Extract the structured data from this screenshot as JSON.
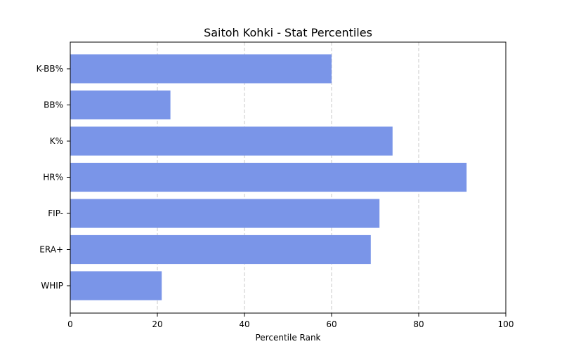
{
  "chart_data": {
    "type": "bar",
    "orientation": "horizontal",
    "title": "Saitoh Kohki - Stat Percentiles",
    "xlabel": "Percentile Rank",
    "ylabel": "",
    "xlim": [
      0,
      100
    ],
    "xticks": [
      "0",
      "20",
      "40",
      "60",
      "80",
      "100"
    ],
    "grid": "x-dashed",
    "bar_color": "#7a95e8",
    "categories": [
      "K-BB%",
      "BB%",
      "K%",
      "HR%",
      "FIP-",
      "ERA+",
      "WHIP"
    ],
    "values": [
      60,
      23,
      74,
      91,
      71,
      69,
      21
    ]
  }
}
